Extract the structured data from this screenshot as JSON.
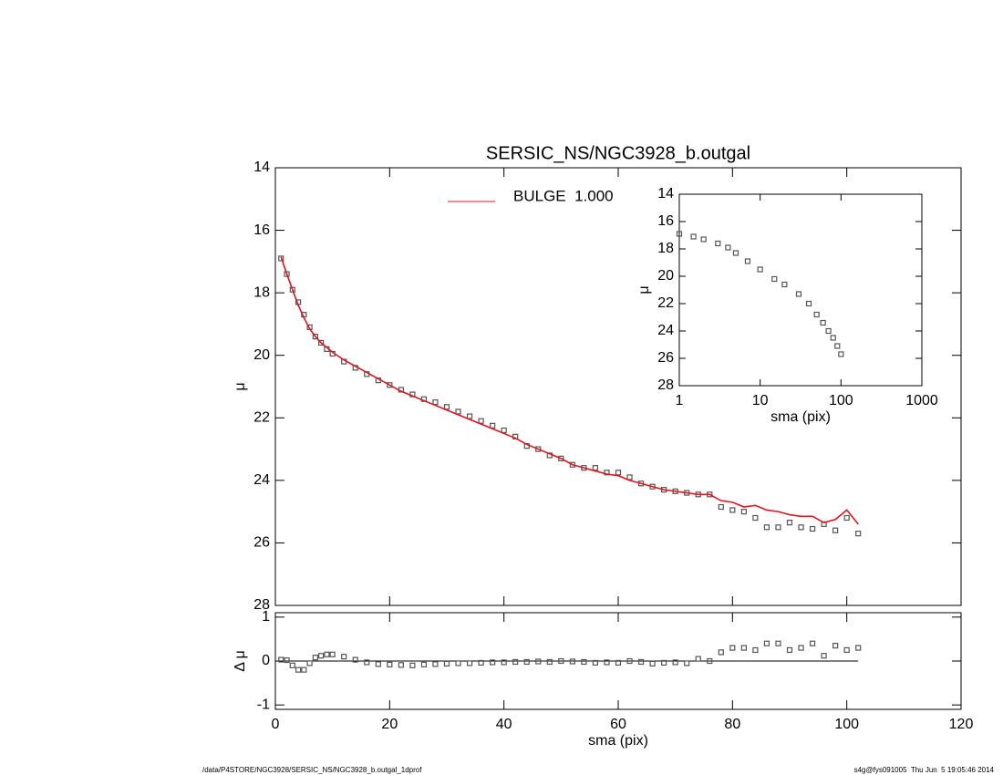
{
  "chart_data": [
    {
      "type": "line",
      "title": "SERSIC_NS/NGC3928_b.outgal",
      "y_label": "μ",
      "xlim": [
        0,
        120
      ],
      "xticks": [
        0,
        20,
        40,
        60,
        80,
        100,
        120
      ],
      "ylim": [
        28,
        14
      ],
      "yticks": [
        14,
        16,
        18,
        20,
        22,
        24,
        26,
        28
      ],
      "x": [
        1,
        2,
        3,
        4,
        5,
        6,
        7,
        8,
        9,
        10,
        12,
        14,
        16,
        18,
        20,
        22,
        24,
        26,
        28,
        30,
        32,
        34,
        36,
        38,
        40,
        42,
        44,
        46,
        48,
        50,
        52,
        54,
        56,
        58,
        60,
        62,
        64,
        66,
        68,
        70,
        72,
        74,
        76,
        78,
        80,
        82,
        84,
        86,
        88,
        90,
        92,
        94,
        96,
        98,
        100,
        102
      ],
      "series": [
        {
          "style": "markers",
          "color": "#555555",
          "values": [
            16.9,
            17.4,
            17.9,
            18.3,
            18.7,
            19.1,
            19.4,
            19.6,
            19.8,
            19.95,
            20.2,
            20.4,
            20.6,
            20.8,
            20.95,
            21.1,
            21.25,
            21.4,
            21.5,
            21.65,
            21.8,
            21.95,
            22.1,
            22.25,
            22.4,
            22.6,
            22.9,
            23.0,
            23.2,
            23.3,
            23.5,
            23.6,
            23.6,
            23.75,
            23.75,
            23.9,
            24.1,
            24.2,
            24.3,
            24.35,
            24.4,
            24.45,
            24.45,
            24.85,
            24.95,
            25.0,
            25.2,
            25.5,
            25.5,
            25.35,
            25.5,
            25.55,
            25.4,
            25.6,
            25.2,
            25.7
          ]
        },
        {
          "style": "line",
          "name": "BULGE  1.000",
          "color": "#e0141e",
          "values": [
            16.85,
            17.4,
            17.9,
            18.4,
            18.8,
            19.15,
            19.4,
            19.6,
            19.75,
            19.9,
            20.15,
            20.35,
            20.55,
            20.75,
            20.95,
            21.15,
            21.3,
            21.45,
            21.6,
            21.75,
            21.9,
            22.05,
            22.2,
            22.35,
            22.5,
            22.65,
            22.85,
            23.0,
            23.15,
            23.3,
            23.5,
            23.6,
            23.7,
            23.8,
            23.85,
            24.0,
            24.1,
            24.2,
            24.3,
            24.35,
            24.4,
            24.45,
            24.45,
            24.65,
            24.7,
            24.85,
            24.8,
            24.95,
            25.0,
            25.1,
            25.15,
            25.15,
            25.35,
            25.25,
            24.95,
            25.4
          ]
        }
      ]
    },
    {
      "type": "scatter",
      "x_label": "sma (pix)",
      "y_label": "Δ μ",
      "xlim": [
        0,
        120
      ],
      "xticks": [
        0,
        20,
        40,
        60,
        80,
        100,
        120
      ],
      "ylim": [
        -1.1,
        1.1
      ],
      "yticks": [
        -1,
        0,
        1
      ],
      "reference_line": 0,
      "color": "#555555",
      "x": [
        1,
        2,
        3,
        4,
        5,
        6,
        7,
        8,
        9,
        10,
        12,
        14,
        16,
        18,
        20,
        22,
        24,
        26,
        28,
        30,
        32,
        34,
        36,
        38,
        40,
        42,
        44,
        46,
        48,
        50,
        52,
        54,
        56,
        58,
        60,
        62,
        64,
        66,
        68,
        70,
        72,
        74,
        76,
        78,
        80,
        82,
        84,
        86,
        88,
        90,
        92,
        94,
        96,
        98,
        100,
        102
      ],
      "values": [
        0.03,
        0.02,
        -0.1,
        -0.2,
        -0.2,
        -0.05,
        0.08,
        0.12,
        0.15,
        0.15,
        0.1,
        0.03,
        -0.03,
        -0.07,
        -0.08,
        -0.09,
        -0.1,
        -0.08,
        -0.07,
        -0.06,
        -0.05,
        -0.05,
        -0.04,
        -0.03,
        -0.03,
        -0.02,
        -0.02,
        -0.01,
        -0.02,
        0.0,
        -0.01,
        -0.02,
        -0.04,
        -0.03,
        -0.04,
        0.0,
        -0.02,
        -0.06,
        -0.04,
        -0.03,
        -0.05,
        0.05,
        0.0,
        0.2,
        0.3,
        0.3,
        0.25,
        0.4,
        0.4,
        0.25,
        0.3,
        0.4,
        0.12,
        0.35,
        0.25,
        0.3
      ]
    },
    {
      "type": "scatter",
      "x_label": "sma (pix)",
      "y_label": "μ",
      "log_x": true,
      "xlim": [
        1,
        1000
      ],
      "xticks": [
        1,
        10,
        100,
        1000
      ],
      "ylim": [
        28,
        14
      ],
      "yticks": [
        14,
        16,
        18,
        20,
        22,
        24,
        26,
        28
      ],
      "color": "#555555",
      "x": [
        1,
        1.5,
        2,
        3,
        4,
        5,
        7,
        10,
        15,
        20,
        30,
        40,
        50,
        60,
        70,
        80,
        90,
        100
      ],
      "values": [
        16.9,
        17.1,
        17.3,
        17.6,
        17.9,
        18.3,
        18.9,
        19.5,
        20.2,
        20.6,
        21.3,
        22.0,
        22.8,
        23.4,
        24.0,
        24.5,
        25.1,
        25.7
      ]
    }
  ],
  "footer": {
    "left": "/data/P4STORE/NGC3928/SERSIC_NS/NGC3928_b.outgal_1dprof",
    "right": "s4g@fys091005  Thu Jun  5 19:05:46 2014"
  }
}
